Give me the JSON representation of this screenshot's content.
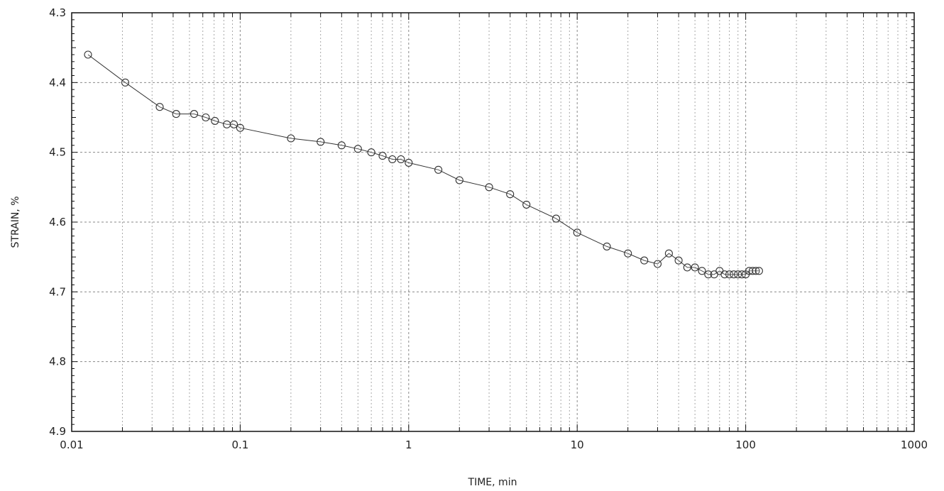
{
  "chart_data": {
    "type": "scatter",
    "title": "",
    "xlabel": "TIME, min",
    "ylabel": "STRAIN, %",
    "x_scale": "log",
    "xlim": [
      0.01,
      1000
    ],
    "ylim": [
      4.3,
      4.9
    ],
    "y_inverted": true,
    "grid": true,
    "x_tick_labels": [
      "0.01",
      "0.1",
      "1",
      "10",
      "100",
      "1000"
    ],
    "y_tick_labels": [
      "4.3",
      "4.4",
      "4.5",
      "4.6",
      "4.7",
      "4.8",
      "4.9"
    ],
    "series": [
      {
        "marker": "circle",
        "line": true,
        "x": [
          0.0125,
          0.0208,
          0.0333,
          0.0417,
          0.0533,
          0.0625,
          0.0708,
          0.0833,
          0.0917,
          0.1,
          0.2,
          0.3,
          0.4,
          0.5,
          0.6,
          0.7,
          0.8,
          0.9,
          1.0,
          1.5,
          2,
          3,
          4,
          5,
          7.5,
          10,
          15,
          20,
          25,
          30,
          35,
          40,
          45,
          50,
          55,
          60,
          65,
          70,
          75,
          80,
          85,
          90,
          95,
          100,
          105,
          110,
          115,
          120
        ],
        "y": [
          4.36,
          4.4,
          4.435,
          4.445,
          4.445,
          4.45,
          4.455,
          4.46,
          4.46,
          4.465,
          4.48,
          4.485,
          4.49,
          4.495,
          4.5,
          4.505,
          4.51,
          4.51,
          4.515,
          4.525,
          4.54,
          4.55,
          4.56,
          4.575,
          4.595,
          4.615,
          4.635,
          4.645,
          4.655,
          4.66,
          4.645,
          4.655,
          4.665,
          4.665,
          4.67,
          4.675,
          4.675,
          4.67,
          4.675,
          4.675,
          4.675,
          4.675,
          4.675,
          4.675,
          4.67,
          4.67,
          4.67,
          4.67
        ]
      }
    ]
  }
}
